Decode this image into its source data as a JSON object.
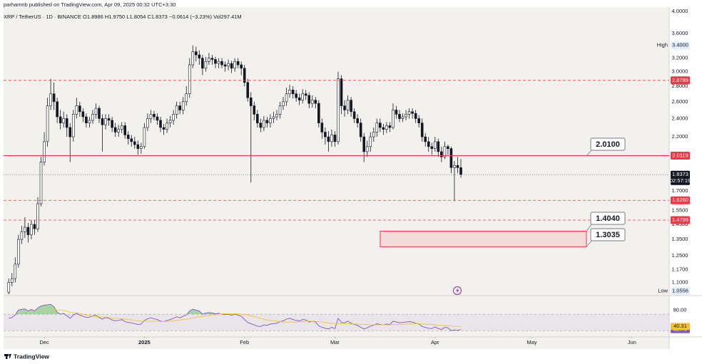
{
  "header": {
    "publisher": "parhamnb published on TradingView.com, Apr 09, 2025 00:32 UTC+3:30",
    "symbol": "XRP / TetherUS · 1D · BINANCE  O1.8986  H1.9750  L1.8054  C1.8373  −0.0614 (−3.23%)  Vol297.41M"
  },
  "footer": {
    "brand": "TradingView"
  },
  "chart_data": [
    {
      "type": "candlestick",
      "log_scale": true,
      "grid": false,
      "xlim": [
        -1.6,
        204.5
      ],
      "ylim": [
        1.04,
        4.08
      ],
      "xticks": [
        {
          "value": 11,
          "label": "Dec"
        },
        {
          "value": 42,
          "label": "2025"
        },
        {
          "value": 73,
          "label": "Feb"
        },
        {
          "value": 101,
          "label": "Mar"
        },
        {
          "value": 132,
          "label": "Apr"
        },
        {
          "value": 162,
          "label": "May"
        },
        {
          "value": 193,
          "label": "Jun"
        }
      ],
      "yticks": [
        {
          "value": 4,
          "label": "4.0000"
        },
        {
          "value": 3.6,
          "label": "3.6000"
        },
        {
          "value": 3.2,
          "label": "3.2000"
        },
        {
          "value": 3,
          "label": "3.0000"
        },
        {
          "value": 2.8,
          "label": "2.8000"
        },
        {
          "value": 2.6,
          "label": "2.6000"
        },
        {
          "value": 2.4,
          "label": "2.4000"
        },
        {
          "value": 2.2,
          "label": "2.2000"
        },
        {
          "value": 1.7,
          "label": "1.7000"
        },
        {
          "value": 1.55,
          "label": "1.5500"
        },
        {
          "value": 1.45,
          "label": "1.4500"
        },
        {
          "value": 1.35,
          "label": "1.3500"
        },
        {
          "value": 1.25,
          "label": "1.2500"
        },
        {
          "value": 1.17,
          "label": "1.1700"
        },
        {
          "value": 1.1,
          "label": "1.1000"
        }
      ],
      "colors": {
        "up": "#ffffff",
        "down": "#131722",
        "wick": "#131722"
      },
      "open": [
        1.05,
        1.1,
        1.12,
        1.2,
        1.35,
        1.4,
        1.43,
        1.38,
        1.45,
        1.42,
        1.6,
        1.95,
        2.15,
        2.55,
        2.7,
        2.6,
        2.42,
        2.35,
        2.4,
        2.3,
        2.2,
        2.45,
        2.55,
        2.48,
        2.42,
        2.35,
        2.38,
        2.45,
        2.52,
        2.4,
        2.33,
        2.4,
        2.38,
        2.3,
        2.25,
        2.28,
        2.32,
        2.22,
        2.18,
        2.15,
        2.12,
        2.08,
        2.1,
        2.3,
        2.4,
        2.45,
        2.42,
        2.38,
        2.3,
        2.28,
        2.35,
        2.38,
        2.45,
        2.55,
        2.5,
        2.6,
        2.7,
        3.1,
        3.3,
        3.25,
        3.2,
        3.05,
        3.15,
        3.2,
        3.18,
        3.12,
        3.15,
        3.1,
        3.08,
        3.12,
        3.05,
        3.15,
        3.1,
        3.05,
        2.85,
        2.65,
        2.55,
        2.45,
        2.35,
        2.3,
        2.38,
        2.35,
        2.4,
        2.42,
        2.45,
        2.55,
        2.6,
        2.7,
        2.75,
        2.7,
        2.65,
        2.62,
        2.7,
        2.68,
        2.58,
        2.62,
        2.58,
        2.35,
        2.25,
        2.2,
        2.15,
        2.22,
        2.15,
        2.9,
        2.55,
        2.5,
        2.62,
        2.48,
        2.4,
        2.35,
        2.2,
        2.05,
        2.1,
        2.2,
        2.25,
        2.35,
        2.3,
        2.28,
        2.32,
        2.3,
        2.5,
        2.45,
        2.4,
        2.42,
        2.45,
        2.48,
        2.46,
        2.4,
        2.35,
        2.2,
        2.15,
        2.1,
        2.08,
        2.15,
        2.05,
        2.0,
        2.1,
        2.08,
        1.9,
        1.92,
        1.9
      ],
      "high": [
        1.12,
        1.15,
        1.24,
        1.38,
        1.44,
        1.5,
        1.46,
        1.48,
        1.48,
        1.65,
        2.0,
        2.25,
        2.65,
        2.9,
        2.85,
        2.65,
        2.5,
        2.48,
        2.45,
        2.35,
        2.5,
        2.65,
        2.6,
        2.52,
        2.46,
        2.42,
        2.5,
        2.58,
        2.55,
        2.45,
        2.45,
        2.45,
        2.42,
        2.35,
        2.33,
        2.36,
        2.36,
        2.26,
        2.22,
        2.2,
        2.16,
        2.14,
        2.35,
        2.46,
        2.5,
        2.49,
        2.46,
        2.42,
        2.34,
        2.4,
        2.43,
        2.5,
        2.6,
        2.6,
        2.66,
        2.8,
        3.2,
        3.4,
        3.38,
        3.32,
        3.25,
        3.22,
        3.28,
        3.25,
        3.22,
        3.2,
        3.2,
        3.15,
        3.18,
        3.16,
        3.2,
        3.2,
        3.15,
        3.1,
        2.9,
        2.72,
        2.6,
        2.5,
        2.4,
        2.43,
        2.42,
        2.45,
        2.48,
        2.5,
        2.6,
        2.66,
        2.78,
        2.82,
        2.8,
        2.75,
        2.7,
        2.76,
        2.75,
        2.72,
        2.68,
        2.66,
        2.62,
        2.4,
        2.3,
        2.26,
        2.28,
        2.26,
        3.0,
        2.95,
        2.62,
        2.68,
        2.66,
        2.52,
        2.45,
        2.4,
        2.24,
        2.16,
        2.25,
        2.3,
        2.4,
        2.4,
        2.34,
        2.36,
        2.36,
        2.58,
        2.55,
        2.5,
        2.46,
        2.5,
        2.52,
        2.52,
        2.5,
        2.44,
        2.4,
        2.24,
        2.2,
        2.14,
        2.2,
        2.18,
        2.1,
        2.15,
        2.12,
        2.1,
        1.96,
        2.0,
        1.98
      ],
      "low": [
        1.03,
        1.08,
        1.1,
        1.18,
        1.32,
        1.36,
        1.33,
        1.35,
        1.38,
        1.4,
        1.58,
        1.92,
        2.1,
        2.5,
        2.5,
        2.35,
        2.28,
        2.3,
        2.2,
        1.95,
        2.15,
        2.4,
        2.42,
        2.36,
        2.3,
        2.3,
        2.34,
        2.4,
        2.35,
        2.05,
        2.28,
        2.32,
        2.25,
        2.2,
        2.2,
        2.24,
        2.18,
        2.12,
        2.1,
        2.08,
        2.02,
        2.03,
        2.08,
        2.26,
        2.35,
        2.38,
        2.33,
        2.25,
        2.22,
        2.24,
        2.3,
        2.33,
        2.4,
        2.45,
        2.45,
        2.55,
        2.65,
        3.05,
        3.15,
        3.1,
        2.95,
        3.0,
        3.1,
        3.1,
        3.05,
        3.05,
        3.05,
        3.0,
        3.02,
        2.98,
        3.0,
        3.05,
        2.95,
        2.8,
        2.6,
        1.77,
        2.38,
        2.3,
        2.25,
        2.26,
        2.3,
        2.3,
        2.35,
        2.38,
        2.4,
        2.5,
        2.55,
        2.65,
        2.64,
        2.6,
        2.56,
        2.58,
        2.62,
        2.52,
        2.53,
        2.52,
        2.3,
        2.18,
        2.12,
        2.05,
        2.1,
        2.1,
        2.12,
        2.45,
        2.42,
        2.45,
        2.42,
        2.35,
        2.3,
        2.15,
        1.95,
        2.0,
        2.05,
        2.15,
        2.2,
        2.25,
        2.22,
        2.24,
        2.25,
        2.28,
        2.4,
        2.36,
        2.36,
        2.38,
        2.4,
        2.4,
        2.35,
        2.3,
        2.15,
        2.1,
        2.05,
        2.02,
        2.05,
        2.0,
        1.95,
        1.98,
        2.02,
        1.85,
        1.62,
        1.85,
        1.81
      ],
      "close": [
        1.1,
        1.12,
        1.2,
        1.35,
        1.4,
        1.43,
        1.38,
        1.45,
        1.42,
        1.6,
        1.95,
        2.15,
        2.55,
        2.7,
        2.6,
        2.42,
        2.35,
        2.4,
        2.3,
        2.2,
        2.45,
        2.55,
        2.48,
        2.42,
        2.35,
        2.38,
        2.45,
        2.52,
        2.4,
        2.33,
        2.4,
        2.38,
        2.3,
        2.25,
        2.28,
        2.32,
        2.22,
        2.18,
        2.15,
        2.12,
        2.08,
        2.1,
        2.3,
        2.4,
        2.45,
        2.42,
        2.38,
        2.3,
        2.28,
        2.35,
        2.38,
        2.45,
        2.55,
        2.5,
        2.6,
        2.7,
        3.1,
        3.3,
        3.25,
        3.2,
        3.05,
        3.15,
        3.2,
        3.18,
        3.12,
        3.15,
        3.1,
        3.08,
        3.12,
        3.05,
        3.15,
        3.1,
        3.05,
        2.85,
        2.65,
        2.55,
        2.45,
        2.35,
        2.3,
        2.38,
        2.35,
        2.4,
        2.42,
        2.45,
        2.55,
        2.6,
        2.7,
        2.75,
        2.7,
        2.65,
        2.62,
        2.7,
        2.68,
        2.58,
        2.62,
        2.58,
        2.35,
        2.25,
        2.2,
        2.15,
        2.22,
        2.15,
        2.9,
        2.55,
        2.5,
        2.62,
        2.48,
        2.4,
        2.35,
        2.2,
        2.05,
        2.1,
        2.2,
        2.25,
        2.35,
        2.3,
        2.28,
        2.32,
        2.3,
        2.5,
        2.45,
        2.4,
        2.42,
        2.45,
        2.48,
        2.46,
        2.4,
        2.35,
        2.2,
        2.15,
        2.1,
        2.08,
        2.15,
        2.05,
        2.0,
        2.1,
        2.08,
        1.9,
        1.92,
        1.9,
        1.84
      ],
      "level_color": "#f23645",
      "levels": [
        {
          "value": 2.8789,
          "label": "2.8789",
          "style": "dashed"
        },
        {
          "value": 2.0119,
          "label": "2.0119",
          "style": "solid"
        },
        {
          "value": 1.626,
          "label": "1.6260",
          "style": "dashed"
        },
        {
          "value": 1.4799,
          "label": "1.4799",
          "style": "dashed"
        }
      ],
      "extremes": [
        {
          "tag": "High",
          "value": 3.4,
          "label": "3.4000"
        },
        {
          "tag": "Low",
          "value": 1.0556,
          "label": "1.0556"
        }
      ],
      "last_price": {
        "value": 1.8373,
        "label": "1.8373",
        "countdown": "02:57:19"
      },
      "zone": {
        "high": 1.404,
        "low": 1.3035,
        "color": "#f23645"
      },
      "callouts": [
        {
          "value": 2.01,
          "label": "2.0100"
        },
        {
          "value": 1.404,
          "label": "1.4040"
        },
        {
          "value": 1.3035,
          "label": "1.3035"
        }
      ]
    },
    {
      "type": "line",
      "ylim": [
        20,
        110
      ],
      "yticks": [
        {
          "value": 80,
          "label": "80.00"
        }
      ],
      "bands": [
        70,
        30
      ],
      "band_color": "#7e57c2",
      "overbought_fill": "#4caf50",
      "series": [
        {
          "color": "#7e57c2",
          "last": {
            "value": 32.7,
            "label": "32.70"
          },
          "values": [
            60,
            62,
            68,
            80,
            82,
            83,
            78,
            82,
            78,
            85,
            90,
            92,
            93,
            94,
            88,
            75,
            70,
            72,
            66,
            60,
            68,
            72,
            68,
            65,
            62,
            63,
            66,
            68,
            62,
            58,
            62,
            60,
            56,
            54,
            55,
            57,
            52,
            50,
            49,
            47,
            45,
            46,
            55,
            59,
            61,
            59,
            57,
            53,
            52,
            55,
            57,
            60,
            64,
            61,
            65,
            68,
            78,
            82,
            80,
            78,
            70,
            73,
            74,
            73,
            71,
            72,
            70,
            69,
            70,
            67,
            70,
            68,
            65,
            57,
            50,
            47,
            44,
            41,
            40,
            44,
            43,
            46,
            47,
            48,
            52,
            54,
            58,
            60,
            57,
            55,
            54,
            57,
            56,
            51,
            53,
            51,
            42,
            38,
            36,
            34,
            38,
            35,
            60,
            50,
            49,
            53,
            48,
            45,
            43,
            38,
            34,
            37,
            41,
            43,
            47,
            45,
            44,
            46,
            45,
            53,
            51,
            49,
            50,
            51,
            52,
            51,
            48,
            46,
            40,
            38,
            36,
            35,
            39,
            35,
            33,
            38,
            37,
            30,
            32,
            31,
            32.7
          ]
        },
        {
          "color": "#f5c236",
          "last": {
            "value": 40.31,
            "label": "40.31"
          },
          "values": [
            null,
            null,
            null,
            null,
            null,
            null,
            null,
            null,
            null,
            null,
            null,
            null,
            null,
            80,
            82,
            81,
            80,
            79,
            77,
            75,
            74,
            73,
            72,
            70,
            68,
            67,
            65,
            64,
            64,
            63,
            63,
            62,
            61,
            60,
            60,
            59,
            58,
            57,
            56,
            55,
            54,
            53,
            53,
            53,
            53,
            53,
            53,
            52,
            52,
            53,
            53,
            54,
            55,
            56,
            57,
            58,
            59,
            61,
            63,
            64,
            65,
            66,
            67,
            68,
            69,
            70,
            71,
            71,
            71,
            71,
            71,
            71,
            70,
            69,
            68,
            66,
            64,
            62,
            60,
            58,
            56,
            55,
            54,
            53,
            52,
            51,
            51,
            51,
            51,
            51,
            52,
            52,
            53,
            53,
            53,
            53,
            52,
            51,
            50,
            49,
            48,
            47,
            47,
            47,
            47,
            47,
            46,
            46,
            46,
            45,
            45,
            45,
            44,
            44,
            44,
            44,
            44,
            44,
            44,
            45,
            45,
            45,
            46,
            46,
            46,
            47,
            47,
            47,
            46,
            46,
            45,
            45,
            44,
            43,
            43,
            42,
            42,
            41,
            41,
            40.5,
            40.31
          ]
        }
      ]
    }
  ]
}
